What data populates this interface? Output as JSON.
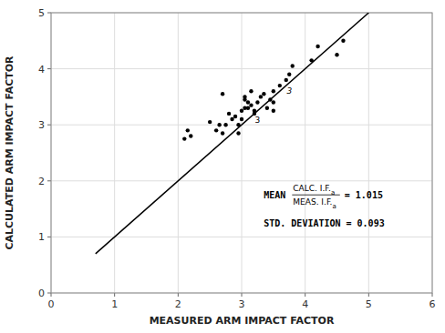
{
  "chart_data": {
    "type": "scatter",
    "xlabel": "MEASURED ARM IMPACT FACTOR",
    "ylabel": "CALCULATED ARM IMPACT FACTOR",
    "xlim": [
      0,
      6
    ],
    "ylim": [
      0,
      5
    ],
    "xticks": [
      0,
      1,
      2,
      3,
      4,
      5,
      6
    ],
    "yticks": [
      0,
      1,
      2,
      3,
      4,
      5
    ],
    "grid": true,
    "series": [
      {
        "type": "line",
        "color": "#000000",
        "x": [
          0.7,
          5.0
        ],
        "values": [
          0.7,
          5.0
        ]
      },
      {
        "type": "scatter",
        "color": "#000000",
        "marker": "dot",
        "x": [
          2.1,
          2.15,
          2.2,
          2.5,
          2.6,
          2.65,
          2.7,
          2.75,
          2.8,
          2.85,
          2.9,
          2.95,
          2.95,
          3.0,
          3.0,
          3.05,
          3.05,
          3.05,
          3.1,
          3.1,
          3.15,
          3.15,
          3.2,
          3.2,
          3.25,
          3.3,
          3.35,
          3.4,
          3.45,
          3.5,
          3.5,
          3.6,
          3.7,
          3.75,
          3.8,
          4.1,
          4.2,
          4.5,
          4.6,
          2.7,
          3.5
        ],
        "values": [
          2.75,
          2.9,
          2.8,
          3.05,
          2.9,
          3.0,
          2.85,
          3.0,
          3.2,
          3.1,
          3.15,
          2.85,
          3.0,
          3.1,
          3.25,
          3.3,
          3.45,
          3.5,
          3.3,
          3.4,
          3.35,
          3.6,
          3.2,
          3.25,
          3.4,
          3.5,
          3.55,
          3.3,
          3.45,
          3.25,
          3.4,
          3.7,
          3.8,
          3.9,
          4.05,
          4.15,
          4.4,
          4.25,
          4.5,
          3.55,
          3.6
        ]
      }
    ],
    "annotations": [
      "3",
      "3",
      "MEAN",
      "CALC. I.F.a",
      "MEAS. I.F.a",
      "= 1.015",
      "STD. DEVIATION = 0.093"
    ]
  }
}
